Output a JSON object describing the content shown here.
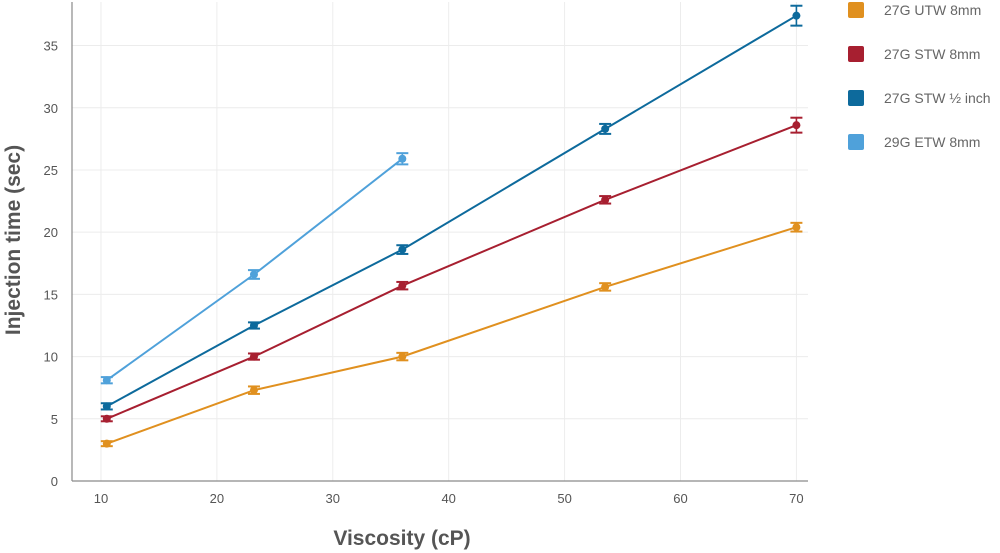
{
  "chart_data": {
    "type": "line",
    "xlabel": "Viscosity (cP)",
    "ylabel": "Injection time (sec)",
    "xlim": [
      7.5,
      71
    ],
    "ylim": [
      0,
      38.5
    ],
    "xticks": [
      10,
      20,
      30,
      40,
      50,
      60,
      70
    ],
    "yticks": [
      0,
      5,
      10,
      15,
      20,
      25,
      30,
      35
    ],
    "grid": true,
    "legend_position": "top-right, outside plot",
    "series": [
      {
        "name": "27G UTW 8mm",
        "color": "#E0901F",
        "x": [
          10.5,
          23.2,
          36,
          53.5,
          70
        ],
        "y": [
          3.0,
          7.3,
          10.0,
          15.6,
          20.4
        ],
        "err": [
          0.2,
          0.3,
          0.3,
          0.3,
          0.35
        ]
      },
      {
        "name": "27G STW 8mm",
        "color": "#A71F30",
        "x": [
          10.5,
          23.2,
          36,
          53.5,
          70
        ],
        "y": [
          5.0,
          10.0,
          15.7,
          22.6,
          28.6
        ],
        "err": [
          0.2,
          0.25,
          0.3,
          0.3,
          0.6
        ]
      },
      {
        "name": "27G STW ½ inch",
        "color": "#0D6A9C",
        "x": [
          10.5,
          23.2,
          36,
          53.5,
          70
        ],
        "y": [
          6.0,
          12.5,
          18.6,
          28.3,
          37.4
        ],
        "err": [
          0.25,
          0.25,
          0.35,
          0.4,
          0.8
        ]
      },
      {
        "name": "29G ETW 8mm",
        "color": "#4FA1DA",
        "x": [
          10.5,
          23.2,
          36
        ],
        "y": [
          8.1,
          16.6,
          25.9
        ],
        "err": [
          0.25,
          0.35,
          0.45
        ]
      }
    ]
  }
}
